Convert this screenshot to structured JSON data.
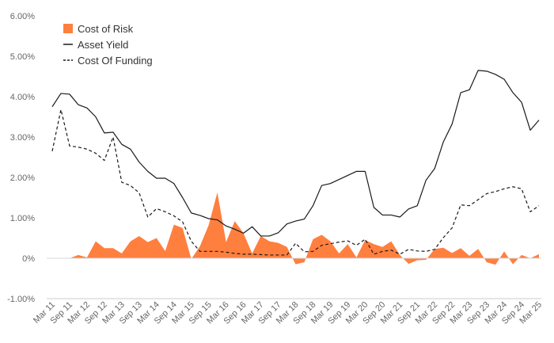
{
  "chart_data": {
    "type": "area",
    "x": [
      "Mar 11",
      "Jun 11",
      "Sep 11",
      "Dec 11",
      "Mar 12",
      "Jun 12",
      "Sep 12",
      "Dec 12",
      "Mar 13",
      "Jun 13",
      "Sep 13",
      "Dec 13",
      "Mar 14",
      "Jun 14",
      "Sep 14",
      "Dec 14",
      "Mar 15",
      "Jun 15",
      "Sep 15",
      "Dec 15",
      "Mar 16",
      "Jun 16",
      "Sep 16",
      "Dec 16",
      "Mar 17",
      "Jun 17",
      "Sep 17",
      "Dec 17",
      "Mar 18",
      "Jun 18",
      "Sep 18",
      "Dec 18",
      "Mar 19",
      "Jun 19",
      "Sep 19",
      "Dec 19",
      "Mar 20",
      "Jun 20",
      "Sep 20",
      "Dec 20",
      "Mar 21",
      "Jun 21",
      "Sep 21",
      "Dec 21",
      "Mar 22",
      "Jun 22",
      "Sep 22",
      "Dec 22",
      "Mar 23",
      "Jun 23",
      "Sep 23",
      "Dec 23",
      "Mar 24",
      "Jun 24",
      "Sep 24",
      "Dec 24",
      "Mar 25"
    ],
    "x_tick_labels": [
      "Mar 11",
      "Sep 11",
      "Mar 12",
      "Sep 12",
      "Mar 13",
      "Sep 13",
      "Mar 14",
      "Sep 14",
      "Mar 15",
      "Sep 15",
      "Mar 16",
      "Sep 16",
      "Mar 17",
      "Sep 17",
      "Mar 18",
      "Sep 18",
      "Mar 19",
      "Sep 19",
      "Mar 20",
      "Sep 20",
      "Mar 21",
      "Sep 21",
      "Mar 22",
      "Sep 22",
      "Mar 23",
      "Sep 23",
      "Mar 24",
      "Sep 24",
      "Mar 25"
    ],
    "y_tick_labels": [
      "-1.00%",
      "0%",
      "1.00%",
      "2.00%",
      "3.00%",
      "4.00%",
      "5.00%",
      "6.00%"
    ],
    "ylim": [
      -1.0,
      6.0
    ],
    "series": [
      {
        "name": "Cost of Risk",
        "kind": "area",
        "color": "#ff7f3f",
        "values": [
          0.0,
          0.0,
          0.0,
          0.08,
          0.02,
          0.42,
          0.25,
          0.25,
          0.12,
          0.42,
          0.55,
          0.4,
          0.5,
          0.18,
          0.83,
          0.75,
          -0.02,
          0.3,
          0.82,
          1.63,
          0.4,
          0.92,
          0.62,
          0.12,
          0.55,
          0.42,
          0.38,
          0.28,
          -0.15,
          -0.1,
          0.47,
          0.58,
          0.42,
          0.12,
          0.35,
          0.02,
          0.45,
          0.35,
          0.28,
          0.42,
          0.08,
          -0.14,
          -0.05,
          -0.04,
          0.23,
          0.26,
          0.13,
          0.25,
          0.06,
          0.23,
          -0.1,
          -0.16,
          0.17,
          -0.15,
          0.08,
          0.0,
          0.1
        ]
      },
      {
        "name": "Asset Yield",
        "kind": "line",
        "dash": "solid",
        "color": "#1a1a1a",
        "values": [
          3.75,
          4.08,
          4.06,
          3.8,
          3.72,
          3.5,
          3.1,
          3.12,
          2.82,
          2.7,
          2.38,
          2.15,
          1.98,
          1.98,
          1.85,
          1.5,
          1.12,
          1.06,
          0.98,
          0.95,
          0.8,
          0.72,
          0.62,
          0.78,
          0.55,
          0.55,
          0.63,
          0.85,
          0.92,
          0.97,
          1.3,
          1.8,
          1.85,
          1.95,
          2.05,
          2.15,
          2.15,
          1.26,
          1.07,
          1.07,
          1.02,
          1.22,
          1.3,
          1.93,
          2.22,
          2.88,
          3.32,
          4.1,
          4.17,
          4.65,
          4.63,
          4.55,
          4.43,
          4.1,
          3.86,
          3.17,
          3.42
        ]
      },
      {
        "name": "Cost Of Funding",
        "kind": "line",
        "dash": "dashed",
        "color": "#1a1a1a",
        "values": [
          2.65,
          3.68,
          2.78,
          2.75,
          2.7,
          2.6,
          2.42,
          3.0,
          1.88,
          1.8,
          1.62,
          1.02,
          1.23,
          1.15,
          1.05,
          0.9,
          0.42,
          0.17,
          0.17,
          0.17,
          0.15,
          0.12,
          0.1,
          0.1,
          0.09,
          0.08,
          0.08,
          0.08,
          0.37,
          0.16,
          0.17,
          0.32,
          0.36,
          0.4,
          0.43,
          0.32,
          0.47,
          0.1,
          0.17,
          0.2,
          0.1,
          0.22,
          0.18,
          0.17,
          0.22,
          0.51,
          0.75,
          1.32,
          1.3,
          1.45,
          1.6,
          1.65,
          1.72,
          1.77,
          1.72,
          1.15,
          1.3
        ]
      }
    ],
    "legend": {
      "position": "top-left",
      "items": [
        {
          "label": "Cost of Risk",
          "marker": "square"
        },
        {
          "label": "Asset Yield",
          "marker": "solid-line"
        },
        {
          "label": "Cost Of Funding",
          "marker": "dashed-line"
        }
      ]
    },
    "grid": {
      "horizontal": false,
      "vertical": false,
      "zero_line": true
    },
    "title": "",
    "xlabel": "",
    "ylabel": ""
  }
}
